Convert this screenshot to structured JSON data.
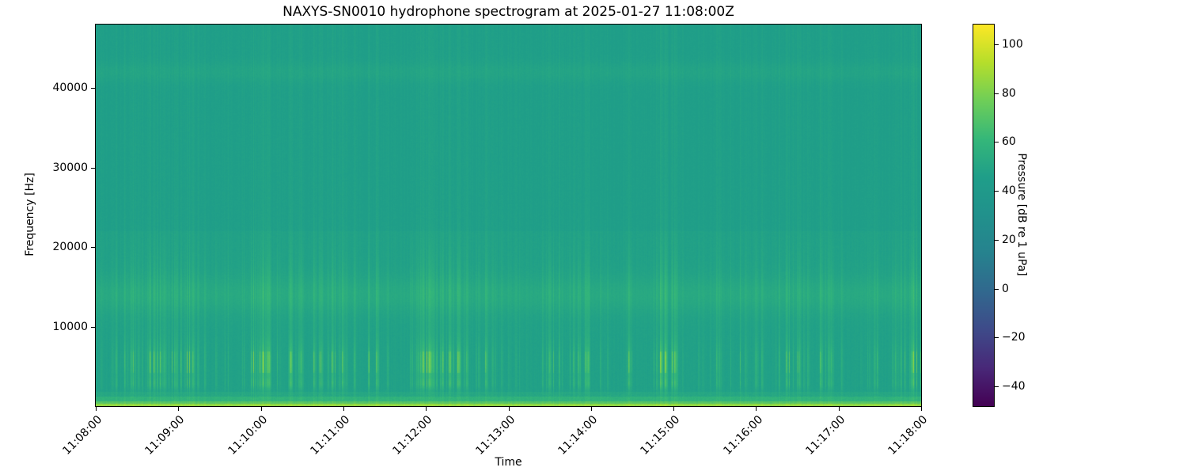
{
  "chart_data": {
    "type": "heatmap",
    "subtype": "spectrogram",
    "title": "NAXYS-SN0010 hydrophone spectrogram at 2025-01-27 11:08:00Z",
    "xlabel": "Time",
    "ylabel": "Frequency [Hz]",
    "x_tick_labels": [
      "11:08:00",
      "11:09:00",
      "11:10:00",
      "11:11:00",
      "11:12:00",
      "11:13:00",
      "11:14:00",
      "11:15:00",
      "11:16:00",
      "11:17:00",
      "11:18:00"
    ],
    "y_ticks": [
      {
        "value": 10000,
        "label": "10000"
      },
      {
        "value": 20000,
        "label": "20000"
      },
      {
        "value": 30000,
        "label": "30000"
      },
      {
        "value": 40000,
        "label": "40000"
      }
    ],
    "freq_range_hz": [
      0,
      48000
    ],
    "time_range": [
      "11:08:00",
      "11:18:00"
    ],
    "grid": false,
    "colorbar": {
      "label": "Pressure [dB re 1 uPa]",
      "ticks": [
        100,
        80,
        60,
        40,
        20,
        0,
        -20,
        -40
      ],
      "vmin": -48,
      "vmax": 108,
      "colormap": "viridis",
      "stops": [
        {
          "pos": 0.0,
          "color": "#440154"
        },
        {
          "pos": 0.1,
          "color": "#482878"
        },
        {
          "pos": 0.2,
          "color": "#3e4a89"
        },
        {
          "pos": 0.3,
          "color": "#31688e"
        },
        {
          "pos": 0.4,
          "color": "#26828e"
        },
        {
          "pos": 0.5,
          "color": "#21918c"
        },
        {
          "pos": 0.6,
          "color": "#1f9e89"
        },
        {
          "pos": 0.7,
          "color": "#35b779"
        },
        {
          "pos": 0.8,
          "color": "#6ece58"
        },
        {
          "pos": 0.9,
          "color": "#b5de2b"
        },
        {
          "pos": 1.0,
          "color": "#fde725"
        }
      ]
    },
    "spectrogram": {
      "background_db": 46,
      "pixel_noise_db": 1.1,
      "low_band_noise_db": 2.4,
      "column_noise_db": 1.6,
      "seed": 20250127,
      "bands": [
        {
          "name": "lowest-frequency-line",
          "f_lo": 0,
          "f_hi": 250,
          "boost_db": 38
        },
        {
          "name": "low-strip",
          "f_lo": 250,
          "f_hi": 600,
          "boost_db": 24
        },
        {
          "name": "low-strip-2",
          "f_lo": 600,
          "f_hi": 1200,
          "boost_db": 12
        },
        {
          "name": "low-strip-3",
          "f_lo": 1200,
          "f_hi": 1800,
          "boost_db": 5
        },
        {
          "name": "mid-band-14khz",
          "type": "gauss",
          "center_hz": 14000,
          "sigma_hz": 1600,
          "boost_db": 5
        },
        {
          "name": "high-band-42khz",
          "type": "gauss",
          "center_hz": 42000,
          "sigma_hz": 900,
          "boost_db": 3
        },
        {
          "name": "below-22khz-lift",
          "f_lo": 1800,
          "f_hi": 22000,
          "boost_db": 1.5
        }
      ],
      "transients": {
        "click_band_center_hz": 5500,
        "click_band_sigma_hz": 2000,
        "secondary_band_center_hz": 2800,
        "secondary_band_sigma_hz": 500,
        "mid_band_sigma_hz": 4000,
        "broadband_min_weight": 0.15,
        "dash_f_lo_hz": 4200,
        "dash_f_hi_hz": 6900,
        "dash_gain": 0.9,
        "base_event_probability": 0.05,
        "cluster_event_probability": 0.45,
        "amp_db_min": 4,
        "amp_db_max": 26,
        "cluster_sigma_cols": 11,
        "clusters": [
          {
            "t": 0.04,
            "s": 0.55
          },
          {
            "t": 0.075,
            "s": 0.9
          },
          {
            "t": 0.11,
            "s": 0.85
          },
          {
            "t": 0.2,
            "s": 1.0
          },
          {
            "t": 0.235,
            "s": 0.6
          },
          {
            "t": 0.27,
            "s": 0.65
          },
          {
            "t": 0.3,
            "s": 0.7
          },
          {
            "t": 0.335,
            "s": 0.5
          },
          {
            "t": 0.4,
            "s": 1.0
          },
          {
            "t": 0.435,
            "s": 0.85
          },
          {
            "t": 0.48,
            "s": 0.6
          },
          {
            "t": 0.56,
            "s": 0.45
          },
          {
            "t": 0.59,
            "s": 0.5
          },
          {
            "t": 0.65,
            "s": 0.6
          },
          {
            "t": 0.69,
            "s": 0.95
          },
          {
            "t": 0.75,
            "s": 0.35
          },
          {
            "t": 0.79,
            "s": 0.55
          },
          {
            "t": 0.845,
            "s": 0.6
          },
          {
            "t": 0.88,
            "s": 0.65
          },
          {
            "t": 0.935,
            "s": 0.45
          },
          {
            "t": 0.985,
            "s": 0.9
          }
        ]
      }
    }
  }
}
